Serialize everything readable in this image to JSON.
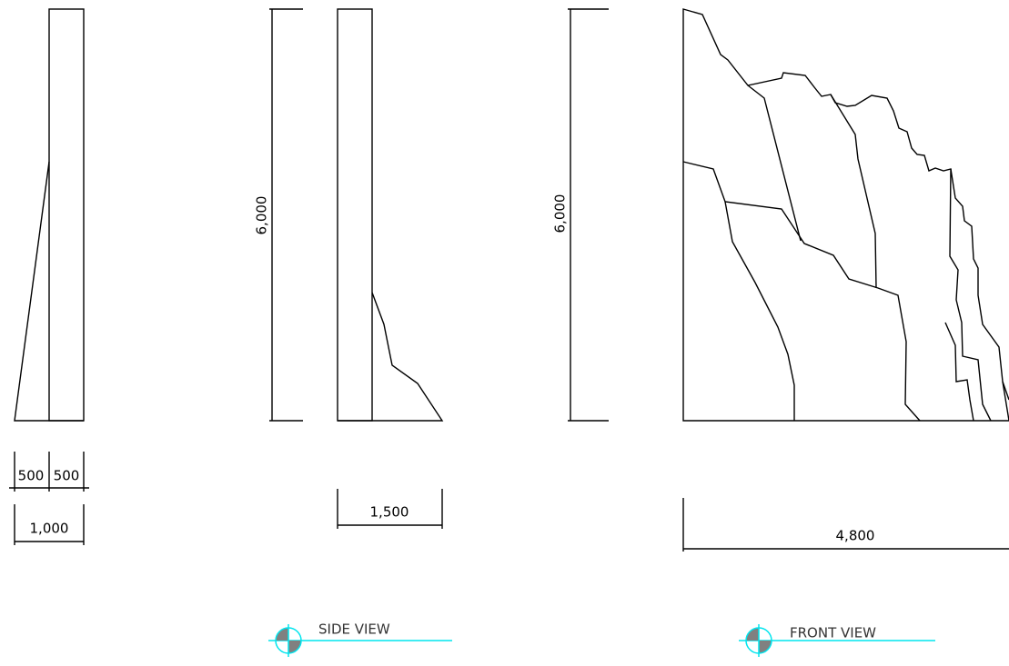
{
  "left_view": {
    "dims": [
      "500",
      "500",
      "1,000"
    ]
  },
  "side_view": {
    "height": "6,000",
    "width": "1,500",
    "label": "SIDE VIEW"
  },
  "front_view": {
    "height": "6,000",
    "width": "4,800",
    "label": "FRONT VIEW"
  }
}
